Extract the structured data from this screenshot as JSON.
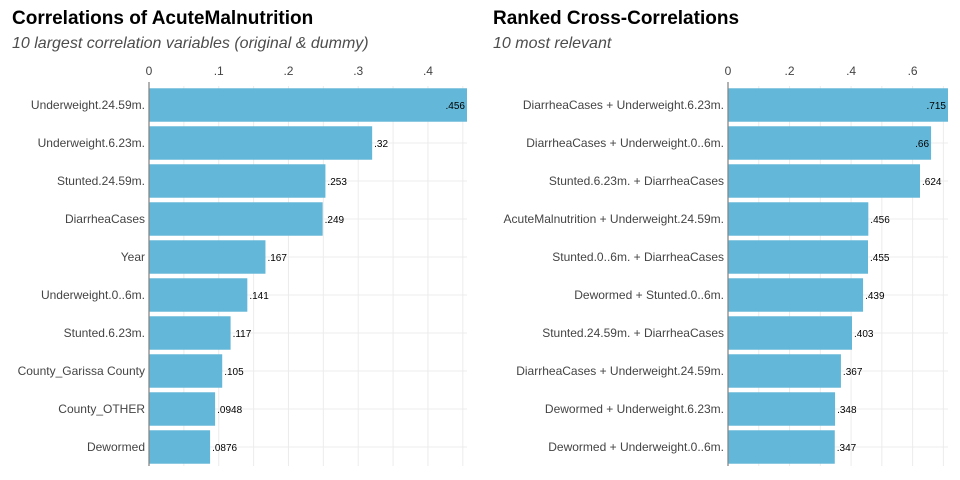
{
  "chart_data": [
    {
      "type": "bar",
      "orientation": "horizontal",
      "title": "Correlations of AcuteMalnutrition",
      "subtitle": "10 largest correlation variables (original & dummy)",
      "categories": [
        "Underweight.24.59m.",
        "Underweight.6.23m.",
        "Stunted.24.59m.",
        "DiarrheaCases",
        "Year",
        "Underweight.0..6m.",
        "Stunted.6.23m.",
        "County_Garissa County",
        "County_OTHER",
        "Dewormed"
      ],
      "values": [
        0.456,
        0.32,
        0.253,
        0.249,
        0.167,
        0.141,
        0.117,
        0.105,
        0.0948,
        0.0876
      ],
      "value_labels": [
        ".456",
        ".32",
        ".253",
        ".249",
        ".167",
        ".141",
        ".117",
        ".105",
        ".0948",
        ".0876"
      ],
      "xticks": [
        0,
        0.1,
        0.2,
        0.3,
        0.4
      ],
      "xtick_labels": [
        "0",
        ".1",
        ".2",
        ".3",
        ".4"
      ],
      "xlim": [
        0,
        0.456
      ],
      "axis_position": "top",
      "grid": true,
      "bar_color": "#63B7D8"
    },
    {
      "type": "bar",
      "orientation": "horizontal",
      "title": "Ranked Cross-Correlations",
      "subtitle": "10 most relevant",
      "categories": [
        "DiarrheaCases + Underweight.6.23m.",
        "DiarrheaCases + Underweight.0..6m.",
        "Stunted.6.23m. + DiarrheaCases",
        "AcuteMalnutrition + Underweight.24.59m.",
        "Stunted.0..6m. + DiarrheaCases",
        "Dewormed + Stunted.0..6m.",
        "Stunted.24.59m. + DiarrheaCases",
        "DiarrheaCases + Underweight.24.59m.",
        "Dewormed + Underweight.6.23m.",
        "Dewormed + Underweight.0..6m."
      ],
      "values": [
        0.715,
        0.66,
        0.624,
        0.456,
        0.455,
        0.439,
        0.403,
        0.367,
        0.348,
        0.347
      ],
      "value_labels": [
        ".715",
        ".66",
        ".624",
        ".456",
        ".455",
        ".439",
        ".403",
        ".367",
        ".348",
        ".347"
      ],
      "xticks": [
        0,
        0.2,
        0.4,
        0.6
      ],
      "xtick_labels": [
        "0",
        ".2",
        ".4",
        ".6"
      ],
      "xlim": [
        0,
        0.715
      ],
      "axis_position": "top",
      "grid": true,
      "bar_color": "#63B7D8"
    }
  ]
}
